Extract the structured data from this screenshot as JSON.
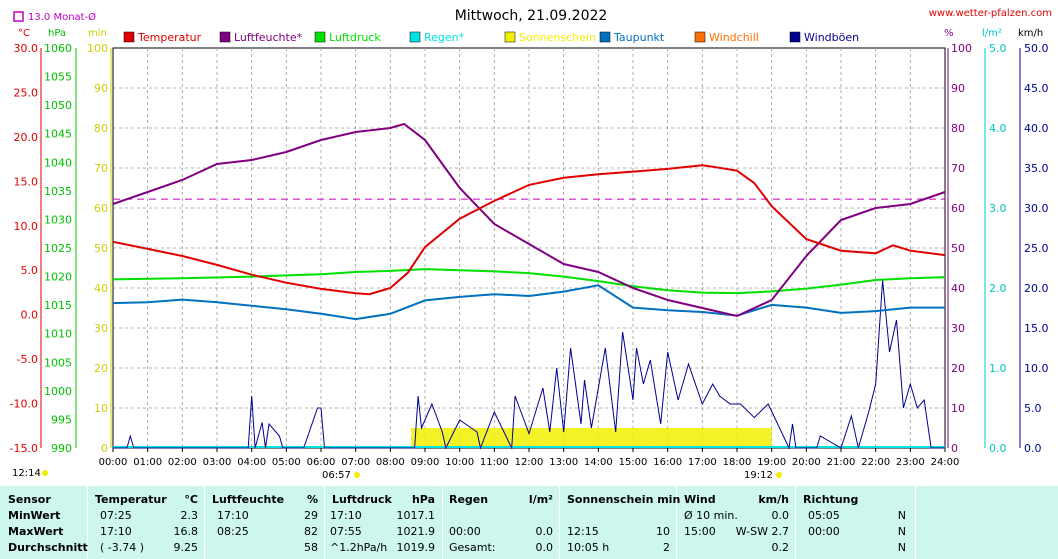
{
  "header": {
    "title": "Mittwoch, 21.09.2022",
    "source": "www.wetter-pfalzen.com",
    "monthly_avg_label": "13.0 Monat-Ø",
    "unit_temp": "°C",
    "unit_pressure": "hPa",
    "unit_sun": "min",
    "unit_pct": "%",
    "unit_rain": "l/m²",
    "unit_wind": "km/h",
    "sunrise_left": "12:14",
    "sunrise": "06:57",
    "sunset": "19:12"
  },
  "colors": {
    "temperature": "#e00000",
    "humidity": "#800080",
    "pressure": "#00e000",
    "rain": "#00e0e0",
    "sunshine": "#f0f000",
    "dewpoint": "#0070c0",
    "windchill": "#ff7000",
    "gusts": "#000090",
    "monthly_avg": "#c000c0",
    "table_bg": "#cdf7ee"
  },
  "chart_data": {
    "type": "line",
    "title": "Mittwoch, 21.09.2022",
    "x_ticks": [
      "00:00",
      "01:00",
      "02:00",
      "03:00",
      "04:00",
      "05:00",
      "06:00",
      "07:00",
      "08:00",
      "09:00",
      "10:00",
      "11:00",
      "12:00",
      "13:00",
      "14:00",
      "15:00",
      "16:00",
      "17:00",
      "18:00",
      "19:00",
      "20:00",
      "21:00",
      "22:00",
      "23:00",
      "24:00"
    ],
    "axes": {
      "temperature": {
        "unit": "°C",
        "range": [
          -15,
          30
        ],
        "ticks": [
          "30.0",
          "25.0",
          "20.0",
          "15.0",
          "10.0",
          "5.0",
          "0.0",
          "-5.0",
          "-10.0",
          "-15.0"
        ]
      },
      "pressure": {
        "unit": "hPa",
        "range": [
          990,
          1060
        ],
        "ticks": [
          "1060",
          "1055",
          "1050",
          "1045",
          "1040",
          "1035",
          "1030",
          "1025",
          "1020",
          "1015",
          "1010",
          "1005",
          "1000",
          "995",
          "990"
        ]
      },
      "sunshine": {
        "unit": "min",
        "range": [
          0,
          100
        ],
        "ticks": [
          "100",
          "90",
          "80",
          "70",
          "60",
          "50",
          "40",
          "30",
          "20",
          "10",
          "0"
        ]
      },
      "humidity": {
        "unit": "%",
        "range": [
          0,
          100
        ],
        "ticks": [
          "100",
          "90",
          "80",
          "70",
          "60",
          "50",
          "40",
          "30",
          "20",
          "10",
          "0"
        ]
      },
      "rain": {
        "unit": "l/m²",
        "range": [
          0,
          5
        ],
        "ticks": [
          "5.0",
          "4.0",
          "3.0",
          "2.0",
          "1.0",
          "0.0"
        ]
      },
      "wind": {
        "unit": "km/h",
        "range": [
          0,
          50
        ],
        "ticks": [
          "50.0",
          "45.0",
          "40.0",
          "35.0",
          "30.0",
          "25.0",
          "20.0",
          "15.0",
          "10.0",
          "5.0",
          "0.0"
        ]
      }
    },
    "legend": [
      "Temperatur",
      "Luftfeuchte*",
      "Luftdruck",
      "Regen*",
      "Sonnenschein",
      "Taupunkt",
      "Windchill",
      "Windböen"
    ],
    "monthly_avg_temp": 13.0,
    "series": [
      {
        "name": "Temperatur",
        "axis": "temperature",
        "x": [
          0,
          1,
          2,
          3,
          4,
          5,
          6,
          7,
          7.4,
          8,
          8.5,
          9,
          10,
          11,
          12,
          13,
          14,
          15,
          16,
          17,
          17.2,
          18,
          18.5,
          19,
          20,
          21,
          22,
          22.5,
          23,
          24
        ],
        "y": [
          8.2,
          7.4,
          6.6,
          5.6,
          4.5,
          3.6,
          2.9,
          2.4,
          2.3,
          3.0,
          4.7,
          7.6,
          10.8,
          12.8,
          14.6,
          15.4,
          15.8,
          16.1,
          16.4,
          16.8,
          16.7,
          16.2,
          14.8,
          12.2,
          8.5,
          7.2,
          6.9,
          7.8,
          7.2,
          6.7
        ]
      },
      {
        "name": "Luftfeuchte*",
        "axis": "humidity",
        "x": [
          0,
          1,
          2,
          3,
          4,
          5,
          6,
          7,
          8,
          8.4,
          9,
          10,
          11,
          12,
          13,
          14,
          15,
          16,
          17,
          18,
          19,
          20,
          21,
          22,
          23,
          24
        ],
        "y": [
          61,
          64,
          67,
          71,
          72,
          74,
          77,
          79,
          80,
          81,
          77,
          65,
          56,
          51,
          46,
          44,
          40,
          37,
          35,
          33,
          37,
          48,
          57,
          60,
          61,
          64
        ]
      },
      {
        "name": "Luftdruck",
        "axis": "pressure",
        "x": [
          0,
          2,
          4,
          6,
          7,
          8,
          9,
          10,
          11,
          12,
          13,
          14,
          15,
          16,
          17,
          18,
          19,
          20,
          21,
          22,
          23,
          24
        ],
        "y": [
          1019.5,
          1019.7,
          1020.0,
          1020.4,
          1020.8,
          1021.0,
          1021.3,
          1021.1,
          1020.9,
          1020.6,
          1020.0,
          1019.2,
          1018.3,
          1017.6,
          1017.2,
          1017.1,
          1017.4,
          1017.9,
          1018.6,
          1019.4,
          1019.7,
          1019.9
        ]
      },
      {
        "name": "Taupunkt",
        "axis": "temperature",
        "x": [
          0,
          1,
          2,
          3,
          4,
          5,
          6,
          7,
          8,
          9,
          10,
          11,
          12,
          13,
          14,
          15,
          16,
          17,
          18,
          19,
          20,
          21,
          22,
          23,
          24
        ],
        "y": [
          1.3,
          1.4,
          1.7,
          1.4,
          1.0,
          0.6,
          0.1,
          -0.5,
          0.1,
          1.6,
          2.0,
          2.3,
          2.1,
          2.6,
          3.3,
          0.8,
          0.5,
          0.3,
          -0.1,
          1.1,
          0.8,
          0.2,
          0.4,
          0.8,
          0.8
        ]
      },
      {
        "name": "Windböen",
        "axis": "wind",
        "x": [
          0,
          0.4,
          0.5,
          0.6,
          3.9,
          4.0,
          4.1,
          4.3,
          4.4,
          4.5,
          4.8,
          4.9,
          5.0,
          5.5,
          5.9,
          6.0,
          6.1,
          8.7,
          8.8,
          8.9,
          9.2,
          9.5,
          9.6,
          10.0,
          10.5,
          10.6,
          11.0,
          11.5,
          11.6,
          12.0,
          12.4,
          12.6,
          12.8,
          13.0,
          13.2,
          13.5,
          13.6,
          13.8,
          14.2,
          14.5,
          14.7,
          15.0,
          15.1,
          15.3,
          15.5,
          15.8,
          16.0,
          16.3,
          16.6,
          17.0,
          17.3,
          17.5,
          17.8,
          18.1,
          18.5,
          18.9,
          19.5,
          19.6,
          19.7,
          20.3,
          20.4,
          21.0,
          21.3,
          21.5,
          21.8,
          22.0,
          22.2,
          22.4,
          22.6,
          22.8,
          23.0,
          23.2,
          23.4,
          23.6,
          24
        ],
        "y": [
          0,
          0,
          1.5,
          0,
          0,
          6.5,
          0,
          3.2,
          0,
          3,
          1.5,
          0,
          0,
          0,
          5,
          5,
          0,
          0,
          6.5,
          2.5,
          5.5,
          2,
          0,
          3.5,
          2,
          0,
          4.5,
          0,
          6.5,
          1.8,
          7.5,
          2,
          10,
          2,
          12.5,
          3,
          8.5,
          2.5,
          12.5,
          2,
          14.5,
          6,
          12.5,
          8,
          11,
          3,
          12,
          6,
          10.5,
          5.5,
          8,
          6.5,
          5.5,
          5.5,
          3.8,
          5.5,
          0,
          3,
          0,
          0,
          1.5,
          0,
          4,
          0,
          4.5,
          8,
          21,
          12,
          16,
          5,
          8,
          5,
          6,
          0,
          0
        ]
      },
      {
        "name": "Sonnenschein",
        "axis": "sunshine",
        "x": [
          8.6,
          9.5,
          10.5,
          11.5,
          12.5,
          13.5,
          14.5,
          15.5,
          16.5,
          17.5,
          18.5,
          19.0
        ],
        "y": [
          5,
          5,
          5,
          5,
          5,
          5,
          5,
          5,
          5,
          5,
          5,
          5
        ]
      }
    ]
  },
  "table": {
    "headers": {
      "sensor": "Sensor",
      "temp": "Temperatur",
      "temp_unit": "°C",
      "hum": "Luftfeuchte",
      "hum_unit": "%",
      "press": "Luftdruck",
      "press_unit": "hPa",
      "rain": "Regen",
      "rain_unit": "l/m²",
      "sun": "Sonnenschein min",
      "wind": "Wind",
      "wind_unit": "km/h",
      "dir": "Richtung"
    },
    "rows": [
      {
        "label": "MinWert",
        "temp_t": "07:25",
        "temp_v": "2.3",
        "hum_t": "17:10",
        "hum_v": "29",
        "press_t": "17:10",
        "press_v": "1017.1",
        "rain_t": "",
        "rain_v": "",
        "sun_t": "",
        "sun_v": "",
        "wind_t": "Ø 10 min.",
        "wind_v": "0.0",
        "dir_t": "05:05",
        "dir_v": "N"
      },
      {
        "label": "MaxWert",
        "temp_t": "17:10",
        "temp_v": "16.8",
        "hum_t": "08:25",
        "hum_v": "82",
        "press_t": "07:55",
        "press_v": "1021.9",
        "rain_t": "00:00",
        "rain_v": "0.0",
        "sun_t": "12:15",
        "sun_v": "10",
        "wind_t": "15:00",
        "wind_v": "W-SW 2.7",
        "dir_t": "00:00",
        "dir_v": "N"
      },
      {
        "label": "Durchschnitt",
        "temp_t": "( -3.74 )",
        "temp_v": "9.25",
        "hum_t": "",
        "hum_v": "58",
        "press_t": "^1.2hPa/h",
        "press_v": "1019.9",
        "rain_t": "Gesamt:",
        "rain_v": "0.0",
        "sun_t": "10:05 h",
        "sun_v": "2",
        "wind_t": "",
        "wind_v": "0.2",
        "dir_t": "",
        "dir_v": "N"
      }
    ]
  }
}
